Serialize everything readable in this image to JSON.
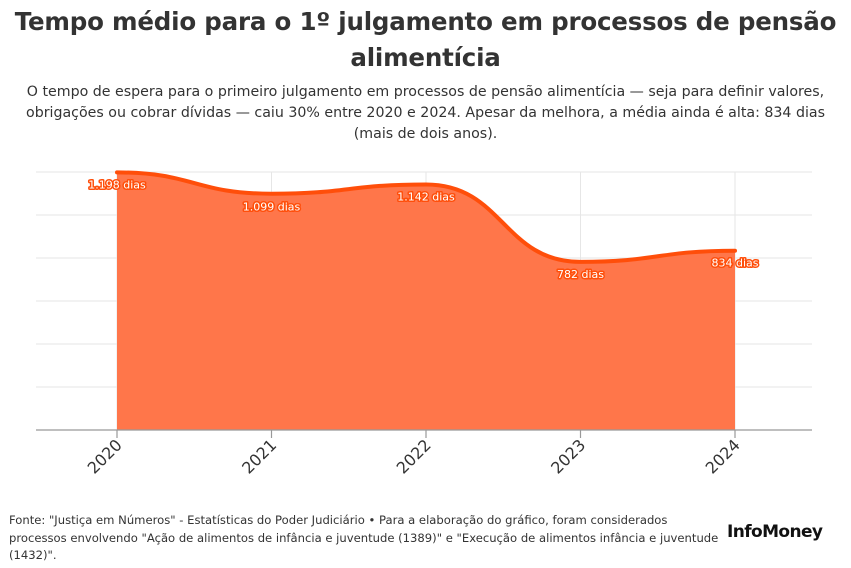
{
  "header": {
    "title": "Tempo médio para o 1º julgamento em processos de pensão alimentícia",
    "subtitle": "O tempo de espera para o primeiro julgamento em processos de pensão alimentícia — seja para definir valores, obrigações ou cobrar dívidas — caiu 30% entre 2020 e 2024. Apesar da melhora, a média ainda é alta: 834 dias (mais de dois anos)."
  },
  "chart_data": {
    "type": "area",
    "x": [
      "2020",
      "2021",
      "2022",
      "2023",
      "2024"
    ],
    "values": [
      1198,
      1099,
      1142,
      782,
      834
    ],
    "data_labels": [
      "1.198 dias",
      "1.099 dias",
      "1.142 dias",
      "782 dias",
      "834 dias"
    ],
    "ylim": [
      0,
      1200
    ],
    "xlabel": "",
    "ylabel": "",
    "grid": true,
    "legend": "none",
    "colors": {
      "area_fill": "#ff764a",
      "line": "#ff4e0a",
      "label_halo": "#ff4e0a",
      "gridline": "#e6e6e6",
      "axis": "#999999"
    }
  },
  "footer": {
    "source": "Fonte: \"Justiça em Números\" - Estatísticas do Poder Judiciário • Para a elaboração do gráfico, foram considerados processos envolvendo \"Ação de alimentos de infância e juventude (1389)\" e \"Execução de alimentos infância e juventude (1432)\".",
    "brand": "InfoMoney"
  }
}
